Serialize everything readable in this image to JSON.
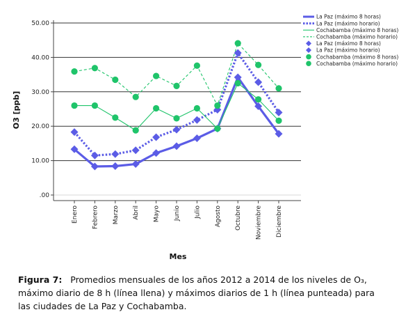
{
  "chart_data": {
    "type": "line",
    "title": "",
    "xlabel": "Mes",
    "ylabel": "O3 [ppb]",
    "ylim": [
      0,
      50
    ],
    "yticks": [
      ".00",
      "10.00",
      "20.00",
      "30.00",
      "40.00",
      "50.00"
    ],
    "grid": "horizontal",
    "legend_position": "top-right",
    "categories": [
      "Enero",
      "Febrero",
      "Marzo",
      "Abril",
      "Mayo",
      "Junio",
      "Julio",
      "Agosto",
      "Octubre",
      "Noviembre",
      "Diciembre"
    ],
    "series": [
      {
        "name": "La Paz (máximo 8 horas)",
        "color": "#5b5ce6",
        "line": "solid",
        "marker": "diamond",
        "values": [
          13.3,
          8.3,
          8.4,
          9.0,
          12.2,
          14.2,
          16.5,
          19.3,
          34.2,
          25.8,
          17.8
        ]
      },
      {
        "name": "La Paz (máximo horario)",
        "color": "#5b5ce6",
        "line": "dotted",
        "marker": "diamond",
        "values": [
          18.3,
          11.5,
          11.9,
          13.0,
          16.8,
          19.0,
          21.8,
          24.8,
          41.3,
          32.8,
          24.0
        ]
      },
      {
        "name": "Cochabamba (máximo 8 horas)",
        "color": "#1fc46a",
        "line": "solid",
        "marker": "circle",
        "values": [
          26.0,
          26.0,
          22.5,
          18.8,
          25.2,
          22.3,
          25.2,
          19.3,
          32.5,
          27.8,
          21.6
        ]
      },
      {
        "name": "Cochabamba (máximo horario)",
        "color": "#1fc46a",
        "line": "dashed",
        "marker": "circle",
        "values": [
          35.9,
          36.9,
          33.5,
          28.5,
          34.6,
          31.7,
          37.6,
          26.0,
          44.1,
          37.8,
          31.0
        ]
      }
    ],
    "legend": [
      {
        "label": "La Paz (máximo 8 horas)",
        "kind": "line",
        "line": "solid",
        "color": "#5b5ce6"
      },
      {
        "label": "La Paz (máximo horario)",
        "kind": "line",
        "line": "dotted",
        "color": "#5b5ce6"
      },
      {
        "label": "Cochabamba (máximo 8 horas)",
        "kind": "line",
        "line": "solid",
        "color": "#1fc46a"
      },
      {
        "label": "Cochabamba (máximo horario)",
        "kind": "line",
        "line": "dashed",
        "color": "#1fc46a"
      },
      {
        "label": "La Paz (máximo 8 horas)",
        "kind": "marker",
        "marker": "diamond",
        "color": "#5b5ce6"
      },
      {
        "label": "La Paz (máximo horario)",
        "kind": "marker",
        "marker": "diamond",
        "color": "#5b5ce6"
      },
      {
        "label": "Cochabamba (máximo 8 horas)",
        "kind": "marker",
        "marker": "circle",
        "color": "#1fc46a"
      },
      {
        "label": "Cochabamba (máximo horario)",
        "kind": "marker",
        "marker": "circle",
        "color": "#1fc46a"
      }
    ]
  },
  "caption": {
    "label": "Figura 7",
    "text": "Promedios mensuales de los años 2012 a 2014 de los niveles de O₃, máximo diario de 8 h (línea llena) y máximos diarios de 1 h (línea punteada) para las ciudades de La Paz y Cochabamba."
  }
}
